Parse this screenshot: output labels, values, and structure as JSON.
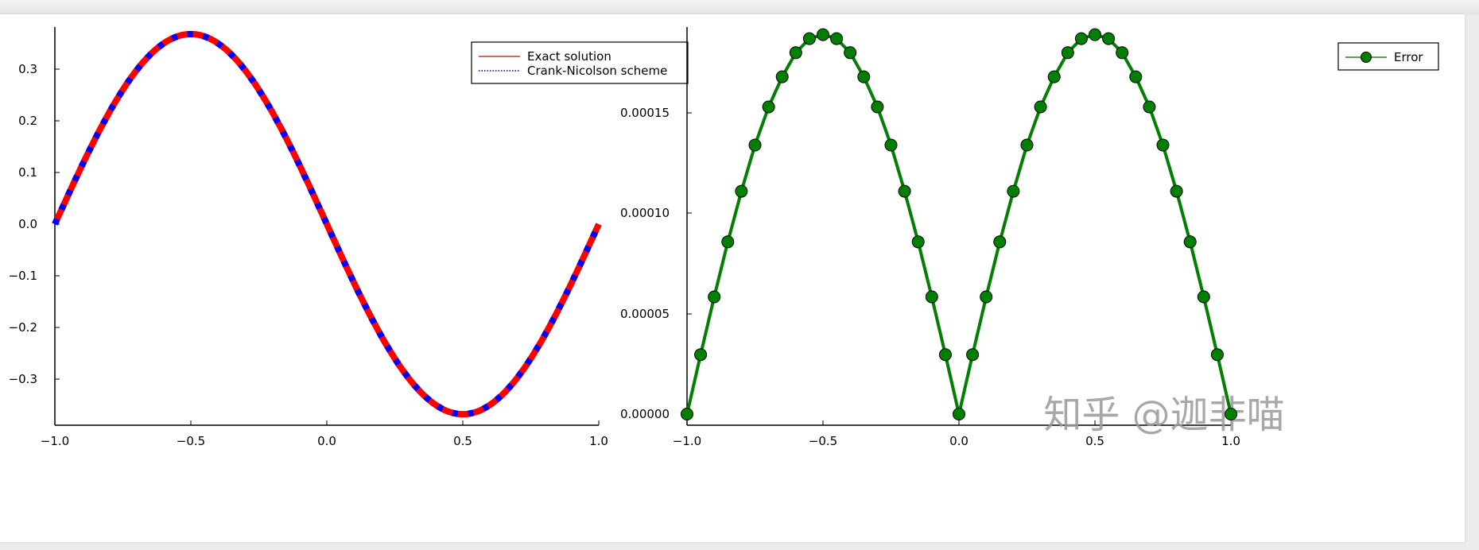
{
  "chart_data": [
    {
      "type": "line",
      "title": "",
      "xlabel": "",
      "ylabel": "",
      "xlim": [
        -1.0,
        1.0
      ],
      "ylim": [
        -0.368,
        0.368
      ],
      "grid": false,
      "legend_position": "top-right",
      "x_ticks": [
        "−1.0",
        "−0.5",
        "0.0",
        "0.5",
        "1.0"
      ],
      "y_ticks": [
        "0.3",
        "0.2",
        "0.1",
        "0.0",
        "−0.1",
        "−0.2",
        "−0.3"
      ],
      "x": [
        -1.0,
        -0.9,
        -0.8,
        -0.7,
        -0.6,
        -0.5,
        -0.4,
        -0.3,
        -0.2,
        -0.1,
        0.0,
        0.1,
        0.2,
        0.3,
        0.4,
        0.5,
        0.6,
        0.7,
        0.8,
        0.9,
        1.0
      ],
      "series": [
        {
          "name": "Exact solution",
          "color": "#ff0000",
          "style": "solid",
          "values": [
            0.0,
            0.1137,
            0.2163,
            0.2977,
            0.3499,
            0.3679,
            0.3499,
            0.2977,
            0.2163,
            0.1137,
            0.0,
            -0.1137,
            -0.2163,
            -0.2977,
            -0.3499,
            -0.3679,
            -0.3499,
            -0.2977,
            -0.2163,
            -0.1137,
            0.0
          ]
        },
        {
          "name": "Crank-Nicolson scheme",
          "color": "#0000ff",
          "style": "dotted",
          "values": [
            0.0,
            0.1136,
            0.2161,
            0.2975,
            0.3497,
            0.3677,
            0.3497,
            0.2975,
            0.2161,
            0.1136,
            0.0,
            -0.1136,
            -0.2161,
            -0.2975,
            -0.3497,
            -0.3677,
            -0.3497,
            -0.2975,
            -0.2161,
            -0.1136,
            0.0
          ]
        }
      ]
    },
    {
      "type": "line",
      "title": "",
      "xlabel": "",
      "ylabel": "",
      "xlim": [
        -1.0,
        1.0
      ],
      "ylim": [
        0.0,
        0.000189
      ],
      "grid": false,
      "legend_position": "top-right",
      "x_ticks": [
        "−1.0",
        "−0.5",
        "0.0",
        "0.5",
        "1.0"
      ],
      "y_ticks": [
        "0.00015",
        "0.00010",
        "0.00005",
        "0.00000"
      ],
      "x_step": 0.05,
      "series": [
        {
          "name": "Error",
          "color": "#007f00",
          "style": "solid",
          "marker": "circle",
          "peak": 0.000189,
          "formula_hint": "peak * |sin(pi x)|",
          "values": [
            0.0,
            2.96e-05,
            5.84e-05,
            8.58e-05,
            0.000111,
            0.000134,
            0.000153,
            0.000168,
            0.00018,
            0.000187,
            0.000189,
            0.000187,
            0.00018,
            0.000168,
            0.000153,
            0.000134,
            0.000111,
            8.58e-05,
            5.84e-05,
            2.96e-05,
            0.0,
            2.96e-05,
            5.84e-05,
            8.58e-05,
            0.000111,
            0.000134,
            0.000153,
            0.000168,
            0.00018,
            0.000187,
            0.000189,
            0.000187,
            0.00018,
            0.000168,
            0.000153,
            0.000134,
            0.000111,
            8.58e-05,
            5.84e-05,
            2.96e-05,
            0.0
          ]
        }
      ]
    }
  ],
  "left_chart": {
    "legend": {
      "item1": "Exact solution",
      "item2": "Crank-Nicolson scheme"
    },
    "x_ticks": [
      "−1.0",
      "−0.5",
      "0.0",
      "0.5",
      "1.0"
    ],
    "y_ticks": [
      "0.3",
      "0.2",
      "0.1",
      "0.0",
      "−0.1",
      "−0.2",
      "−0.3"
    ]
  },
  "right_chart": {
    "legend": {
      "item1": "Error"
    },
    "x_ticks": [
      "−1.0",
      "−0.5",
      "0.0",
      "0.5",
      "1.0"
    ],
    "y_ticks": [
      "0.00015",
      "0.00010",
      "0.00005",
      "0.00000"
    ]
  },
  "watermark": "知乎 @迦非喵",
  "colors": {
    "exact": "#ff0000",
    "cn": "#0000ff",
    "error": "#007f00",
    "error_marker": "#007f00"
  }
}
